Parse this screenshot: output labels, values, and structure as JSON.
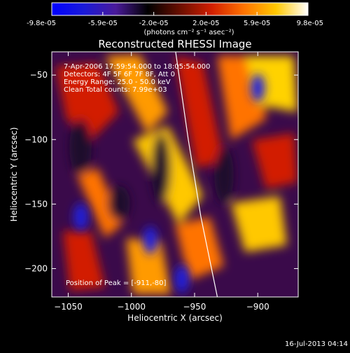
{
  "colorbar": {
    "tick_labels": [
      "-9.8e-05",
      "-5.9e-05",
      "-2.0e-05",
      "2.0e-05",
      "5.9e-05",
      "9.8e-05"
    ],
    "min": -9.8e-05,
    "max": 9.8e-05,
    "units": "(photons cm⁻² s⁻¹ asec⁻²)",
    "colormap": [
      "#0000ff",
      "#1a1ad8",
      "#4a1a9a",
      "#000000",
      "#6a0f00",
      "#d21f00",
      "#ff7300",
      "#ffc800",
      "#ffffff"
    ]
  },
  "chart_data": {
    "type": "heatmap",
    "title": "Reconstructed RHESSI Image",
    "xlabel": "Heliocentric X (arcsec)",
    "ylabel": "Heliocentric Y (arcsec)",
    "xlim": [
      -1063,
      -868
    ],
    "ylim": [
      -222,
      -32
    ],
    "x_ticks": [
      -1050,
      -1000,
      -950,
      -900
    ],
    "x_tick_labels": [
      "−1050",
      "−1000",
      "−950",
      "−900"
    ],
    "y_ticks": [
      -50,
      -100,
      -150,
      -200
    ],
    "y_tick_labels": [
      "−50",
      "−100",
      "−150",
      "−200"
    ],
    "annotations": [
      "7-Apr-2006 17:59:54.000 to 18:05:54.000",
      "Detectors: 4F 5F 6F 7F 8F, Att 0",
      "Energy Range: 25.0 - 50.0 keV",
      "Clean    Total counts: 7.99e+03"
    ],
    "peak_label": "Position of Peak = [-911,-80]",
    "peak": [
      -911,
      -80
    ],
    "limb": [
      [
        -965,
        -32
      ],
      [
        -955,
        -100
      ],
      [
        -945,
        -160
      ],
      [
        -932,
        -222
      ]
    ],
    "blue_spots": [
      [
        -1040,
        -160
      ],
      [
        -985,
        -178
      ],
      [
        -960,
        -208
      ],
      [
        -900,
        -60
      ]
    ]
  },
  "footer": {
    "timestamp": "16-Jul-2013 04:14"
  }
}
